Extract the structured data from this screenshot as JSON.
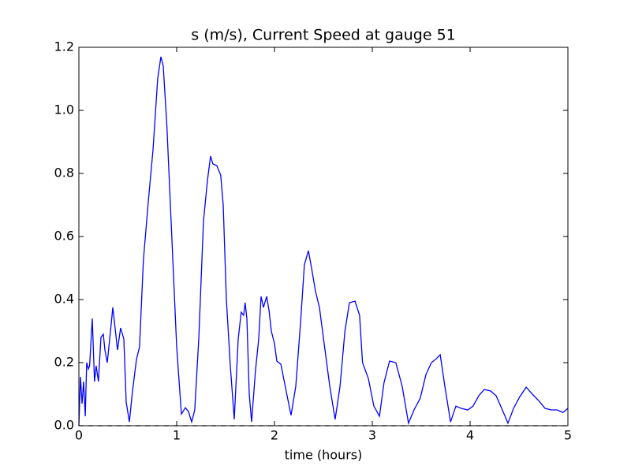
{
  "chart_data": {
    "type": "line",
    "title": "s (m/s), Current Speed at gauge 51",
    "x_label": "time (hours)",
    "x": [
      0,
      0.016,
      0.032,
      0.048,
      0.065,
      0.08,
      0.097,
      0.11,
      0.137,
      0.16,
      0.177,
      0.2,
      0.226,
      0.25,
      0.266,
      0.29,
      0.32,
      0.347,
      0.37,
      0.395,
      0.427,
      0.46,
      0.484,
      0.516,
      0.548,
      0.589,
      0.62,
      0.66,
      0.71,
      0.758,
      0.806,
      0.839,
      0.863,
      0.9,
      0.95,
      1.0,
      1.048,
      1.089,
      1.12,
      1.153,
      1.185,
      1.226,
      1.274,
      1.315,
      1.347,
      1.37,
      1.41,
      1.45,
      1.476,
      1.508,
      1.548,
      1.589,
      1.629,
      1.66,
      1.685,
      1.7,
      1.718,
      1.742,
      1.766,
      1.806,
      1.839,
      1.863,
      1.887,
      1.92,
      1.944,
      1.968,
      2.0,
      2.024,
      2.065,
      2.11,
      2.169,
      2.218,
      2.266,
      2.306,
      2.347,
      2.379,
      2.42,
      2.46,
      2.508,
      2.565,
      2.62,
      2.67,
      2.72,
      2.766,
      2.823,
      2.87,
      2.9,
      2.96,
      3.016,
      3.073,
      3.12,
      3.177,
      3.24,
      3.306,
      3.37,
      3.427,
      3.49,
      3.548,
      3.605,
      3.653,
      3.694,
      3.742,
      3.8,
      3.855,
      3.91,
      3.976,
      4.03,
      4.089,
      4.145,
      4.21,
      4.266,
      4.33,
      4.387,
      4.444,
      4.508,
      4.573,
      4.637,
      4.7,
      4.766,
      4.83,
      4.89,
      4.95,
      5.0
    ],
    "series": [
      {
        "color": "#0000ff",
        "values": [
          0,
          0.155,
          0.07,
          0.14,
          0.03,
          0.2,
          0.18,
          0.19,
          0.34,
          0.14,
          0.19,
          0.14,
          0.28,
          0.29,
          0.24,
          0.2,
          0.29,
          0.375,
          0.31,
          0.24,
          0.31,
          0.275,
          0.075,
          0.012,
          0.11,
          0.21,
          0.25,
          0.525,
          0.71,
          0.875,
          1.1,
          1.17,
          1.14,
          0.95,
          0.6,
          0.25,
          0.037,
          0.057,
          0.045,
          0.012,
          0.05,
          0.275,
          0.65,
          0.78,
          0.855,
          0.83,
          0.825,
          0.795,
          0.7,
          0.4,
          0.19,
          0.02,
          0.275,
          0.36,
          0.35,
          0.39,
          0.34,
          0.1,
          0.012,
          0.175,
          0.275,
          0.41,
          0.375,
          0.41,
          0.365,
          0.3,
          0.26,
          0.205,
          0.195,
          0.125,
          0.033,
          0.125,
          0.325,
          0.51,
          0.555,
          0.5,
          0.425,
          0.375,
          0.26,
          0.125,
          0.02,
          0.125,
          0.3,
          0.39,
          0.395,
          0.35,
          0.2,
          0.15,
          0.062,
          0.03,
          0.137,
          0.205,
          0.2,
          0.125,
          0.008,
          0.05,
          0.087,
          0.162,
          0.2,
          0.212,
          0.225,
          0.125,
          0.012,
          0.062,
          0.055,
          0.05,
          0.062,
          0.095,
          0.115,
          0.11,
          0.095,
          0.05,
          0.008,
          0.055,
          0.092,
          0.122,
          0.1,
          0.08,
          0.055,
          0.05,
          0.05,
          0.042,
          0.055
        ]
      }
    ],
    "hlines": [
      {
        "y": 0,
        "color": "#000000",
        "dashed": true
      }
    ],
    "xlim": [
      0,
      5
    ],
    "xticks": [
      0,
      1,
      2,
      3,
      4,
      5
    ],
    "ylim": [
      0,
      1.2
    ],
    "yticks": [
      {
        "value": 0,
        "label": "0.0"
      },
      {
        "value": 0.2,
        "label": "0.2"
      },
      {
        "value": 0.4,
        "label": "0.4"
      },
      {
        "value": 0.6,
        "label": "0.6"
      },
      {
        "value": 0.8,
        "label": "0.8"
      },
      {
        "value": 1,
        "label": "1.0"
      },
      {
        "value": 1.2,
        "label": "1.2"
      }
    ],
    "grid": false
  }
}
